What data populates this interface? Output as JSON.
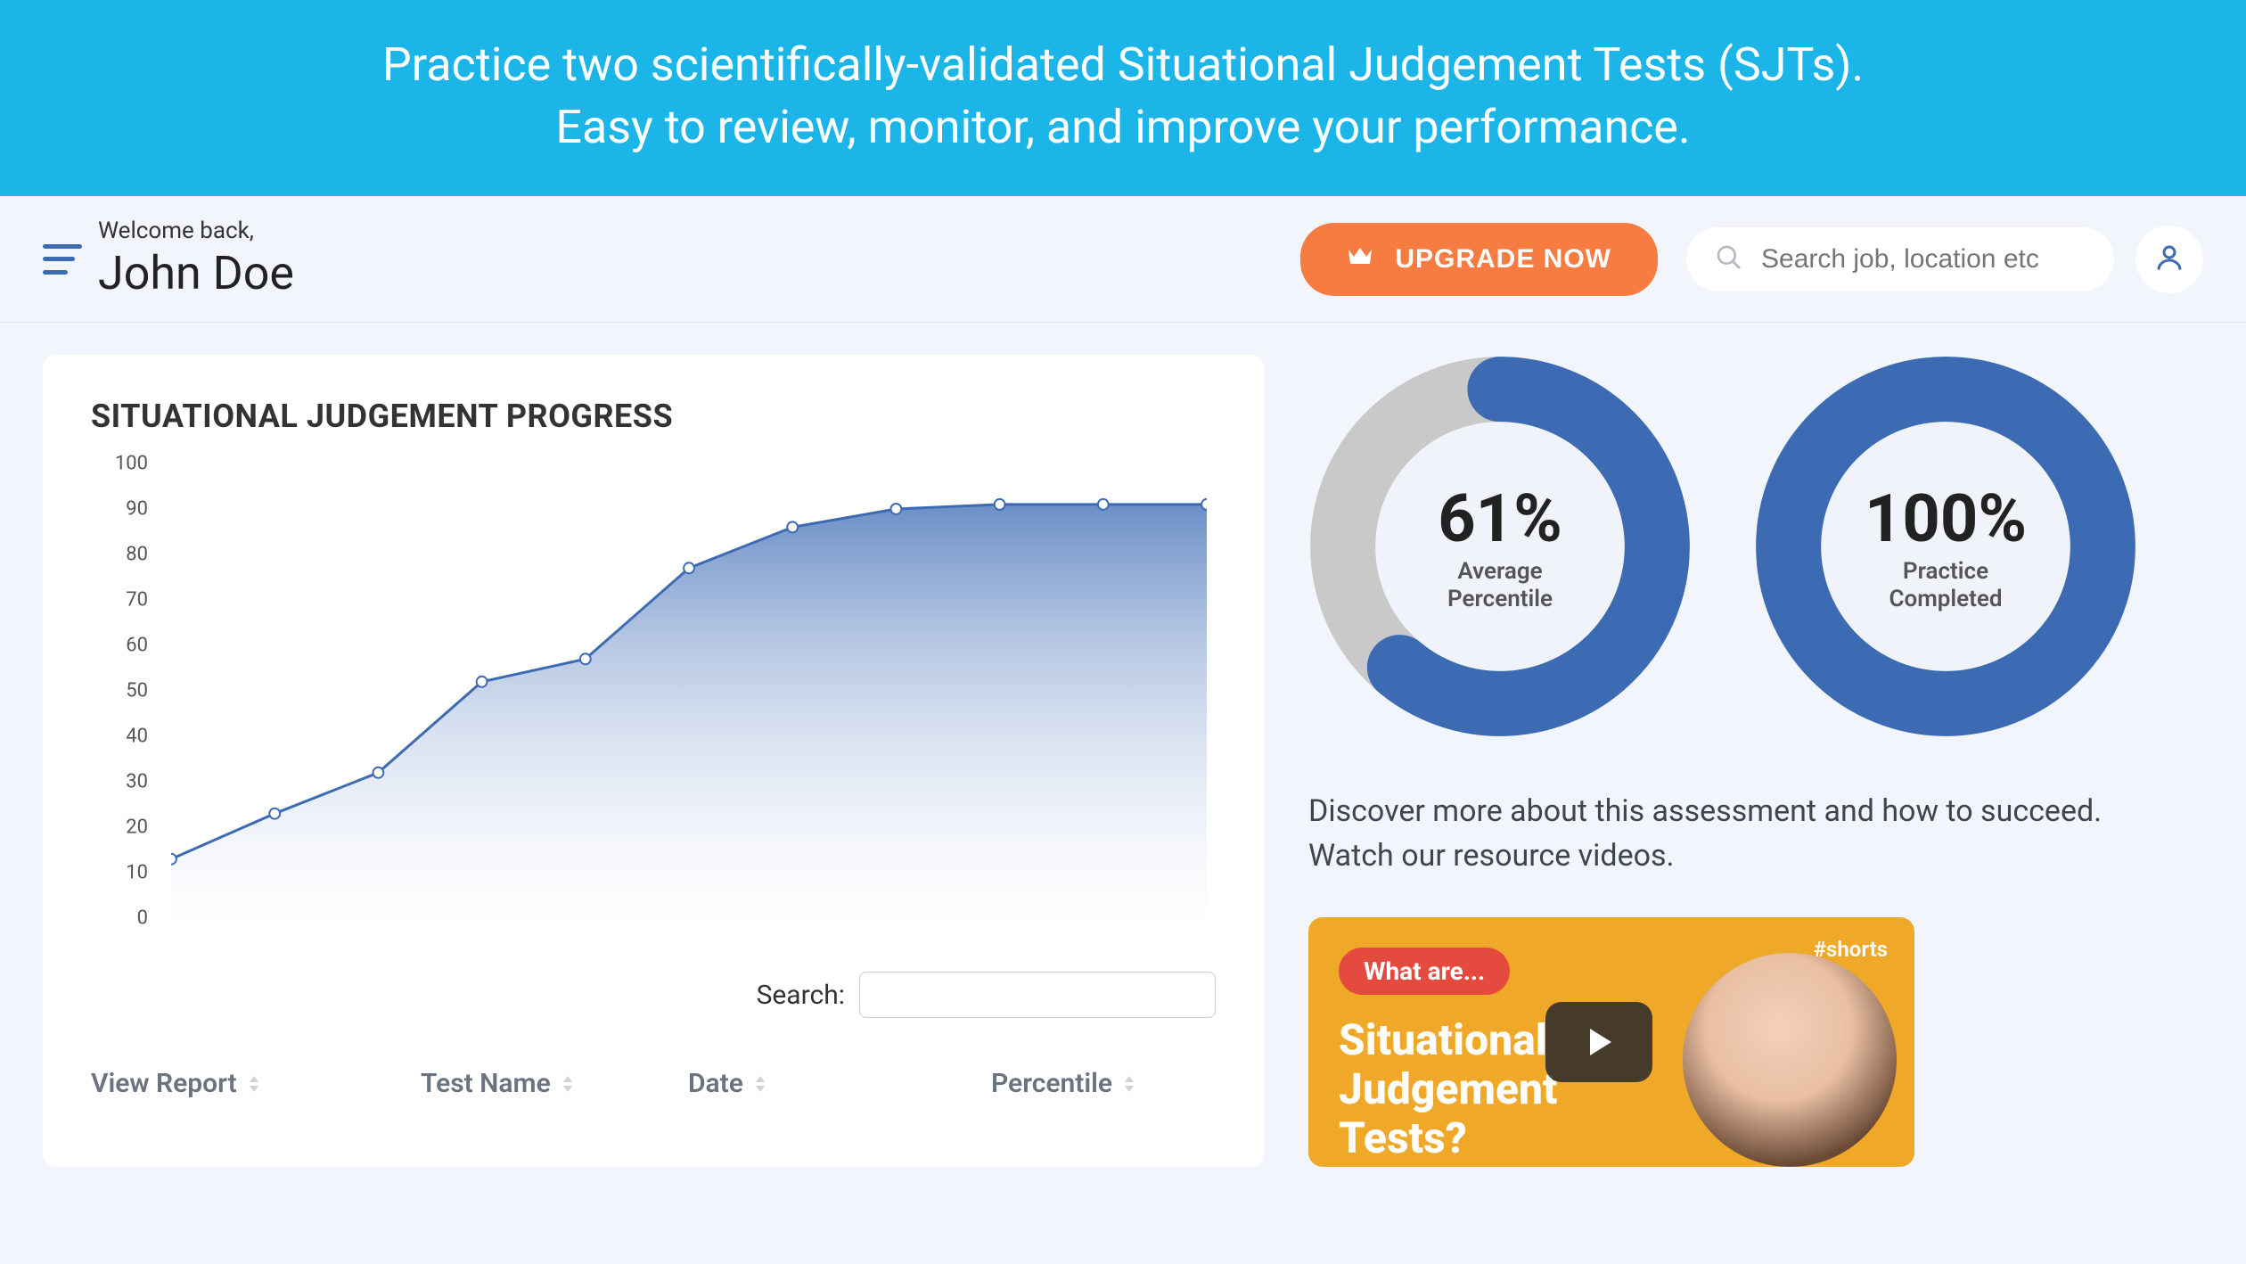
{
  "banner": {
    "line1": "Practice two scientifically-validated Situational Judgement Tests (SJTs).",
    "line2": "Easy to review, monitor, and improve your performance."
  },
  "header": {
    "welcome_text": "Welcome back,",
    "user_name": "John Doe",
    "upgrade_label": "UPGRADE NOW",
    "search_placeholder": "Search job, location etc"
  },
  "chart": {
    "title": "SITUATIONAL JUDGEMENT PROGRESS",
    "type": "area",
    "ylim": [
      0,
      100
    ],
    "ytick_step": 10,
    "yticks": [
      0,
      10,
      20,
      30,
      40,
      50,
      60,
      70,
      80,
      90,
      100
    ],
    "values": [
      13,
      23,
      32,
      52,
      57,
      77,
      86,
      90,
      91,
      91,
      91
    ],
    "line_color": "#3d6bb3",
    "marker_color": "#ffffff",
    "marker_border": "#3d6bb3",
    "fill_top": "#5a82c0",
    "fill_bottom": "#e8eef8",
    "axis_text_color": "#555555",
    "background": "#ffffff"
  },
  "table": {
    "search_label": "Search:",
    "columns": [
      "View Report",
      "Test Name",
      "Date",
      "Percentile"
    ]
  },
  "gauges": {
    "avg": {
      "value": 61,
      "display": "61%",
      "label_l1": "Average",
      "label_l2": "Percentile",
      "ring_color": "#3d6bb3",
      "track_color": "#c9c9c9",
      "center": "#f0f3fa"
    },
    "complete": {
      "value": 100,
      "display": "100%",
      "label_l1": "Practice",
      "label_l2": "Completed",
      "ring_color": "#3d6bb3",
      "track_color": "#c9c9c9",
      "center": "#f0f3fa"
    }
  },
  "discover_text": "Discover more about this assessment and how to succeed. Watch our resource videos.",
  "video": {
    "badge": "What are...",
    "shorts": "#shorts",
    "title_l1": "Situational",
    "title_l2": "Judgement",
    "title_l3": "Tests?",
    "bg_color": "#f0a829"
  },
  "colors": {
    "banner_bg": "#1bb5e8",
    "page_bg": "#f2f5fb",
    "accent_orange": "#f77c42",
    "accent_blue": "#3d6bb3"
  }
}
